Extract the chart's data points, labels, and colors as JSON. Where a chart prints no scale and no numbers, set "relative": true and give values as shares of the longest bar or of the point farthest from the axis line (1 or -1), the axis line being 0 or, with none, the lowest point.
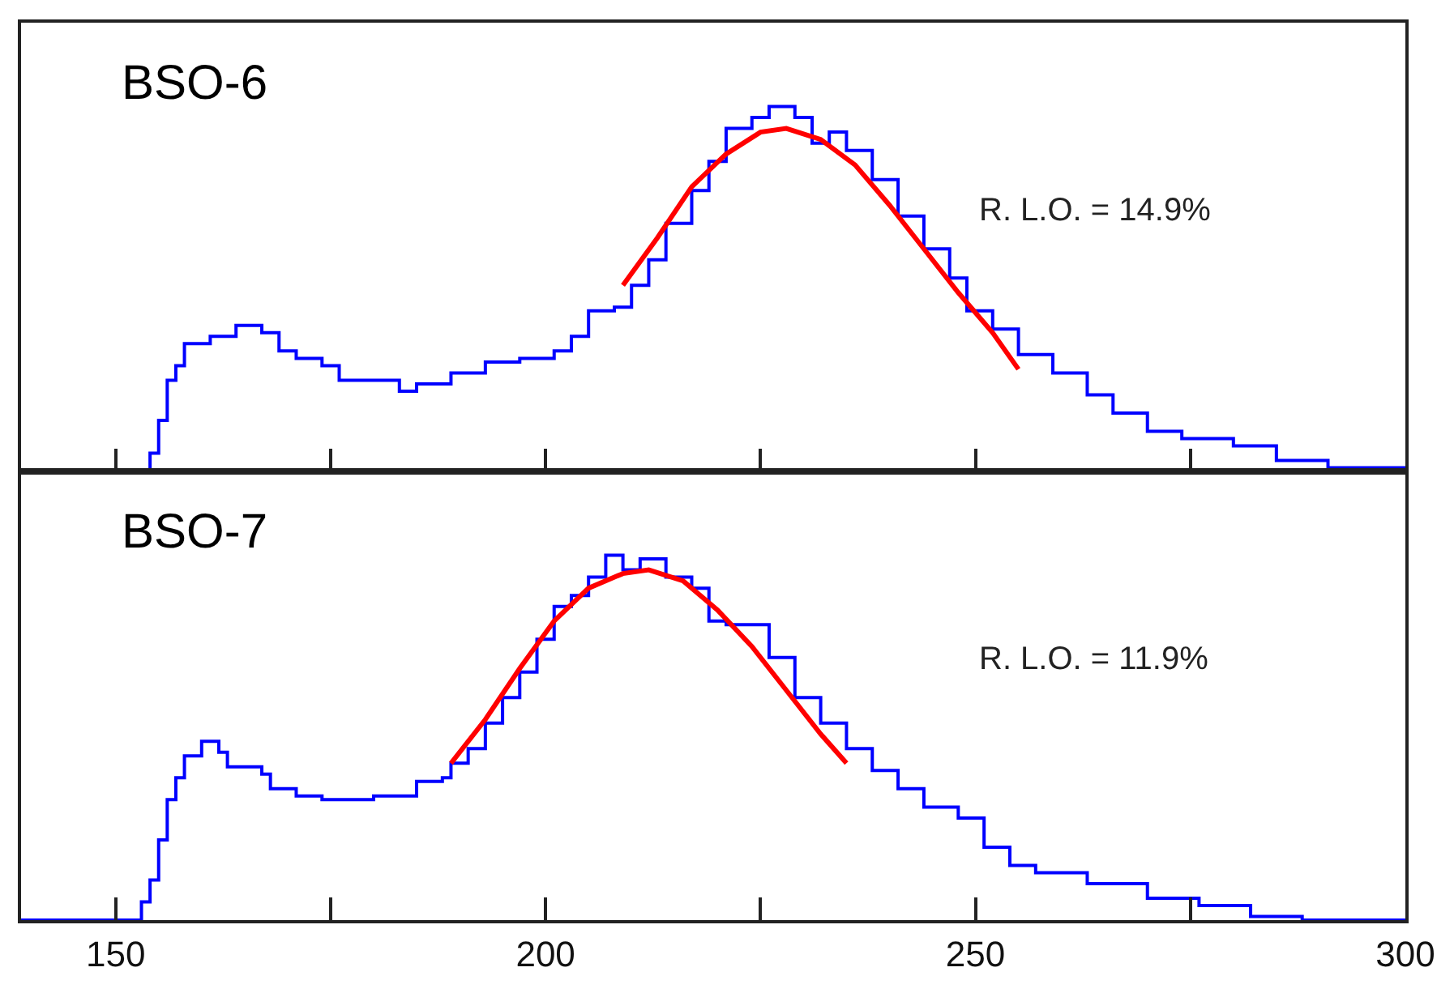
{
  "chart_data": [
    {
      "type": "step",
      "relative": true,
      "xlim": [
        139,
        300
      ],
      "xticks": [
        150,
        {
          "value": 175,
          "label": null
        },
        200,
        {
          "value": 225,
          "label": null
        },
        250,
        {
          "value": 275,
          "label": null
        },
        300
      ],
      "tick_labels": false,
      "x": [
        139,
        152,
        154,
        155,
        156,
        157,
        158,
        161,
        164,
        167,
        169,
        171,
        174,
        176,
        179,
        183,
        185,
        189,
        193,
        197,
        201,
        203,
        205,
        208,
        210,
        212,
        214,
        217,
        219,
        221,
        224,
        226,
        229,
        231,
        233,
        235,
        238,
        241,
        244,
        247,
        249,
        252,
        255,
        259,
        263,
        266,
        270,
        274,
        280,
        285,
        291,
        300
      ],
      "series": [
        {
          "color": "#0000ff",
          "values": [
            0,
            0,
            0.05,
            0.14,
            0.25,
            0.29,
            0.35,
            0.37,
            0.4,
            0.38,
            0.33,
            0.31,
            0.29,
            0.25,
            0.25,
            0.22,
            0.24,
            0.27,
            0.3,
            0.31,
            0.33,
            0.37,
            0.44,
            0.45,
            0.51,
            0.58,
            0.68,
            0.77,
            0.85,
            0.94,
            0.97,
            1,
            0.97,
            0.9,
            0.93,
            0.88,
            0.8,
            0.7,
            0.61,
            0.53,
            0.44,
            0.39,
            0.32,
            0.27,
            0.21,
            0.16,
            0.11,
            0.09,
            0.07,
            0.03,
            0.01,
            0
          ]
        },
        {
          "type": "line",
          "color": "#ff0000",
          "x": [
            209,
            213,
            217,
            221,
            225,
            228,
            232,
            236,
            240,
            244,
            248,
            252,
            255
          ],
          "values": [
            0.51,
            0.64,
            0.78,
            0.87,
            0.93,
            0.94,
            0.91,
            0.84,
            0.73,
            0.61,
            0.49,
            0.38,
            0.28
          ]
        }
      ],
      "annotations": [
        "BSO-6",
        "R. L.O. = 14.9%"
      ]
    },
    {
      "type": "step",
      "relative": true,
      "xlim": [
        139,
        300
      ],
      "xticks": [
        150,
        {
          "value": 175,
          "label": null
        },
        200,
        {
          "value": 225,
          "label": null
        },
        250,
        {
          "value": 275,
          "label": null
        },
        300
      ],
      "tick_labels": "x",
      "x": [
        139,
        152,
        153,
        154,
        155,
        156,
        157,
        158,
        160,
        162,
        163,
        167,
        168,
        171,
        174,
        177,
        180,
        184,
        185,
        188,
        189,
        191,
        193,
        195,
        197,
        199,
        201,
        203,
        205,
        207,
        209,
        211,
        214,
        217,
        219,
        221,
        226,
        229,
        232,
        235,
        238,
        241,
        244,
        248,
        251,
        254,
        257,
        263,
        270,
        276,
        282,
        288,
        300
      ],
      "series": [
        {
          "color": "#0000ff",
          "values": [
            0,
            0,
            0.05,
            0.11,
            0.22,
            0.33,
            0.39,
            0.45,
            0.49,
            0.46,
            0.42,
            0.4,
            0.36,
            0.34,
            0.33,
            0.33,
            0.34,
            0.34,
            0.38,
            0.39,
            0.43,
            0.47,
            0.54,
            0.61,
            0.68,
            0.77,
            0.86,
            0.89,
            0.94,
            1,
            0.96,
            0.99,
            0.94,
            0.91,
            0.82,
            0.81,
            0.72,
            0.61,
            0.54,
            0.47,
            0.41,
            0.36,
            0.31,
            0.28,
            0.2,
            0.15,
            0.13,
            0.1,
            0.06,
            0.04,
            0.01,
            0,
            0
          ]
        },
        {
          "type": "line",
          "color": "#ff0000",
          "x": [
            189,
            193,
            197,
            201,
            205,
            209,
            212,
            216,
            220,
            224,
            228,
            232,
            235
          ],
          "values": [
            0.43,
            0.55,
            0.69,
            0.82,
            0.91,
            0.95,
            0.96,
            0.93,
            0.85,
            0.75,
            0.63,
            0.51,
            0.43
          ]
        }
      ],
      "annotations": [
        "BSO-7",
        "R. L.O. = 11.9%"
      ]
    }
  ]
}
